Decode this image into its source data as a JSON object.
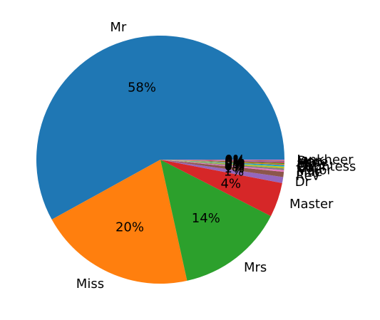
{
  "chart_data": {
    "type": "pie",
    "title": "",
    "slices": [
      {
        "label": "Mr",
        "value": 517,
        "pct_label": "58%",
        "color": "#1f77b4"
      },
      {
        "label": "Miss",
        "value": 182,
        "pct_label": "20%",
        "color": "#ff7f0e"
      },
      {
        "label": "Mrs",
        "value": 125,
        "pct_label": "14%",
        "color": "#2ca02c"
      },
      {
        "label": "Master",
        "value": 40,
        "pct_label": "4%",
        "color": "#d62728"
      },
      {
        "label": "Dr",
        "value": 7,
        "pct_label": "1%",
        "color": "#9467bd"
      },
      {
        "label": "Rev",
        "value": 6,
        "pct_label": "1%",
        "color": "#8c564b"
      },
      {
        "label": "Mlle",
        "value": 2,
        "pct_label": "0%",
        "color": "#e377c2"
      },
      {
        "label": "Major",
        "value": 2,
        "pct_label": "0%",
        "color": "#7f7f7f"
      },
      {
        "label": "Col",
        "value": 2,
        "pct_label": "0%",
        "color": "#bcbd22"
      },
      {
        "label": "Countess",
        "value": 1,
        "pct_label": "0%",
        "color": "#17becf"
      },
      {
        "label": "Capt",
        "value": 1,
        "pct_label": "0%",
        "color": "#1f77b4"
      },
      {
        "label": "Ms",
        "value": 1,
        "pct_label": "0%",
        "color": "#ff7f0e"
      },
      {
        "label": "Sir",
        "value": 1,
        "pct_label": "0%",
        "color": "#2ca02c"
      },
      {
        "label": "Lady",
        "value": 1,
        "pct_label": "0%",
        "color": "#d62728"
      },
      {
        "label": "Mme",
        "value": 1,
        "pct_label": "0%",
        "color": "#9467bd"
      },
      {
        "label": "Don",
        "value": 1,
        "pct_label": "0%",
        "color": "#8c564b"
      },
      {
        "label": "Jonkheer",
        "value": 1,
        "pct_label": "0%",
        "color": "#e377c2"
      }
    ],
    "start_angle_deg": 0,
    "direction": "counterclockwise"
  }
}
